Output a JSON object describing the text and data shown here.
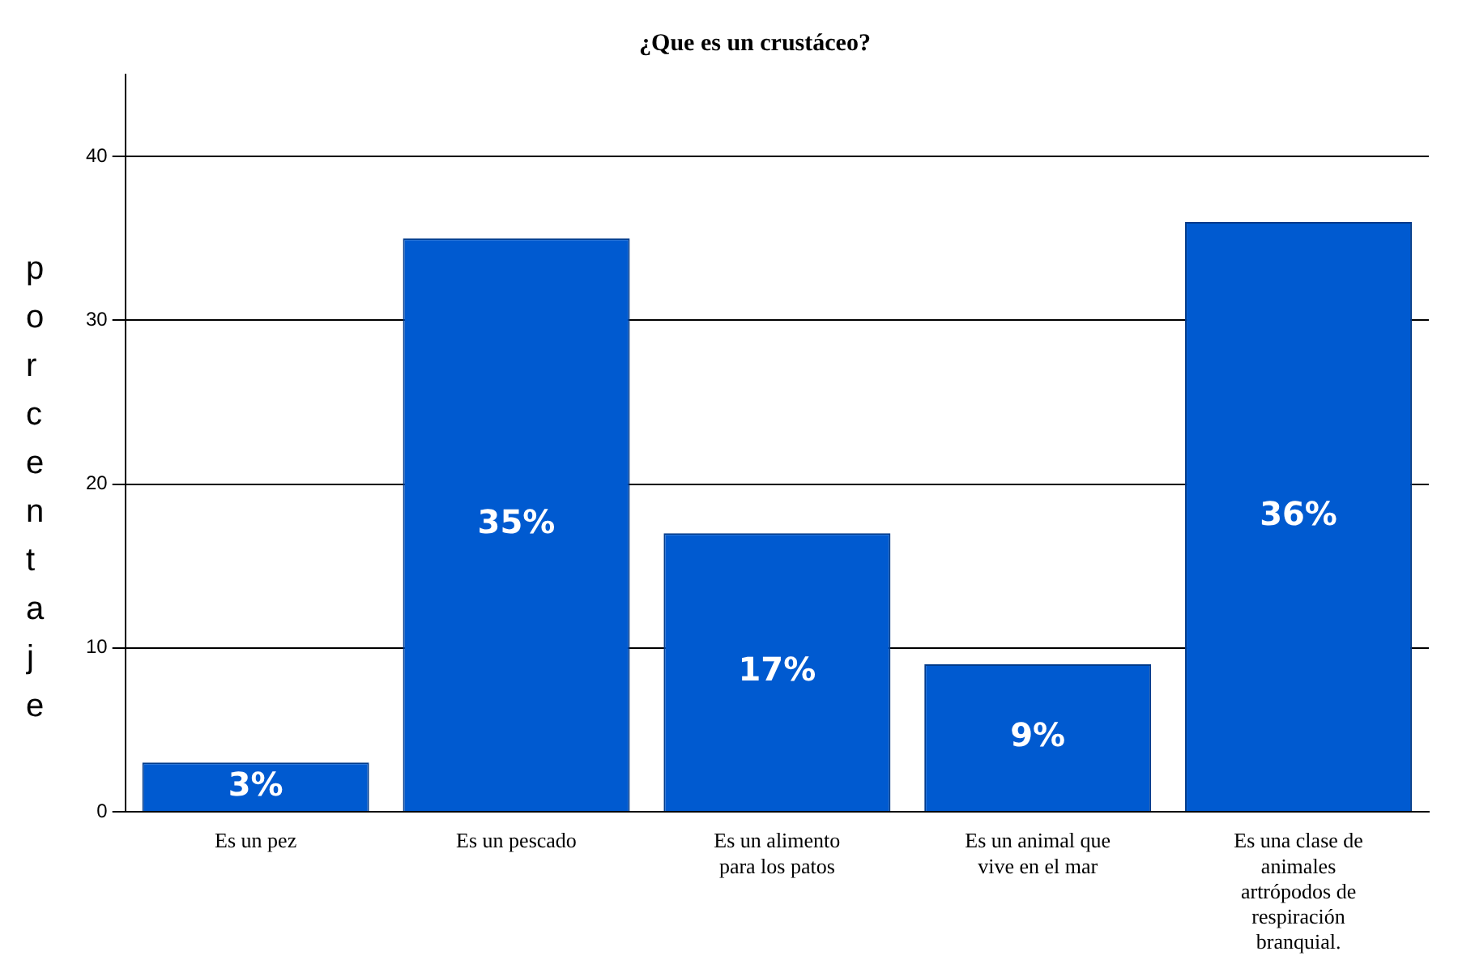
{
  "chart_data": {
    "type": "bar",
    "title": "¿Que es un crustáceo?",
    "ylabel": "porcentaje",
    "categories": [
      "Es un pez",
      "Es un pescado",
      "Es un alimento para los patos",
      "Es un animal que vive en el mar",
      "Es una clase de animales artrópodos de respiración branquial."
    ],
    "values": [
      3,
      35,
      17,
      9,
      36
    ],
    "value_labels": [
      "3%",
      "35%",
      "17%",
      "9%",
      "36%"
    ],
    "color": "#005ad0",
    "ylim": [
      0,
      45
    ],
    "yticks": [
      0,
      10,
      20,
      30,
      40
    ],
    "grid": "y",
    "legend": false
  }
}
